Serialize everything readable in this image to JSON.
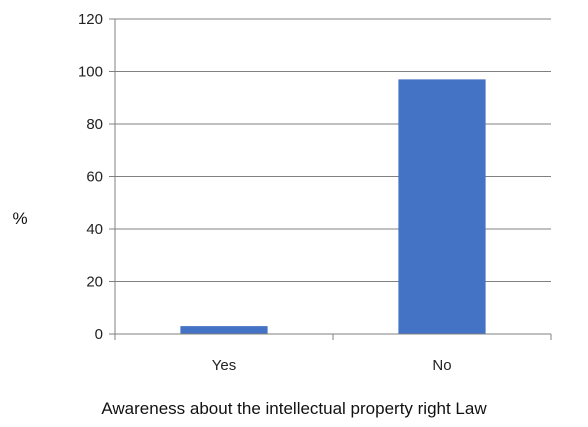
{
  "chart_data": {
    "type": "bar",
    "title": "",
    "categories": [
      "Yes",
      "No"
    ],
    "values": [
      3,
      97
    ],
    "xlabel": "Awareness  about the  intellectual property right  Law",
    "ylabel": "%",
    "ylim": [
      0,
      120
    ],
    "yticks": [
      0,
      20,
      40,
      60,
      80,
      100,
      120
    ],
    "grid": true,
    "legend": "none",
    "bar_color": "#4472C4",
    "grid_color": "#808080",
    "axis_color": "#808080"
  }
}
